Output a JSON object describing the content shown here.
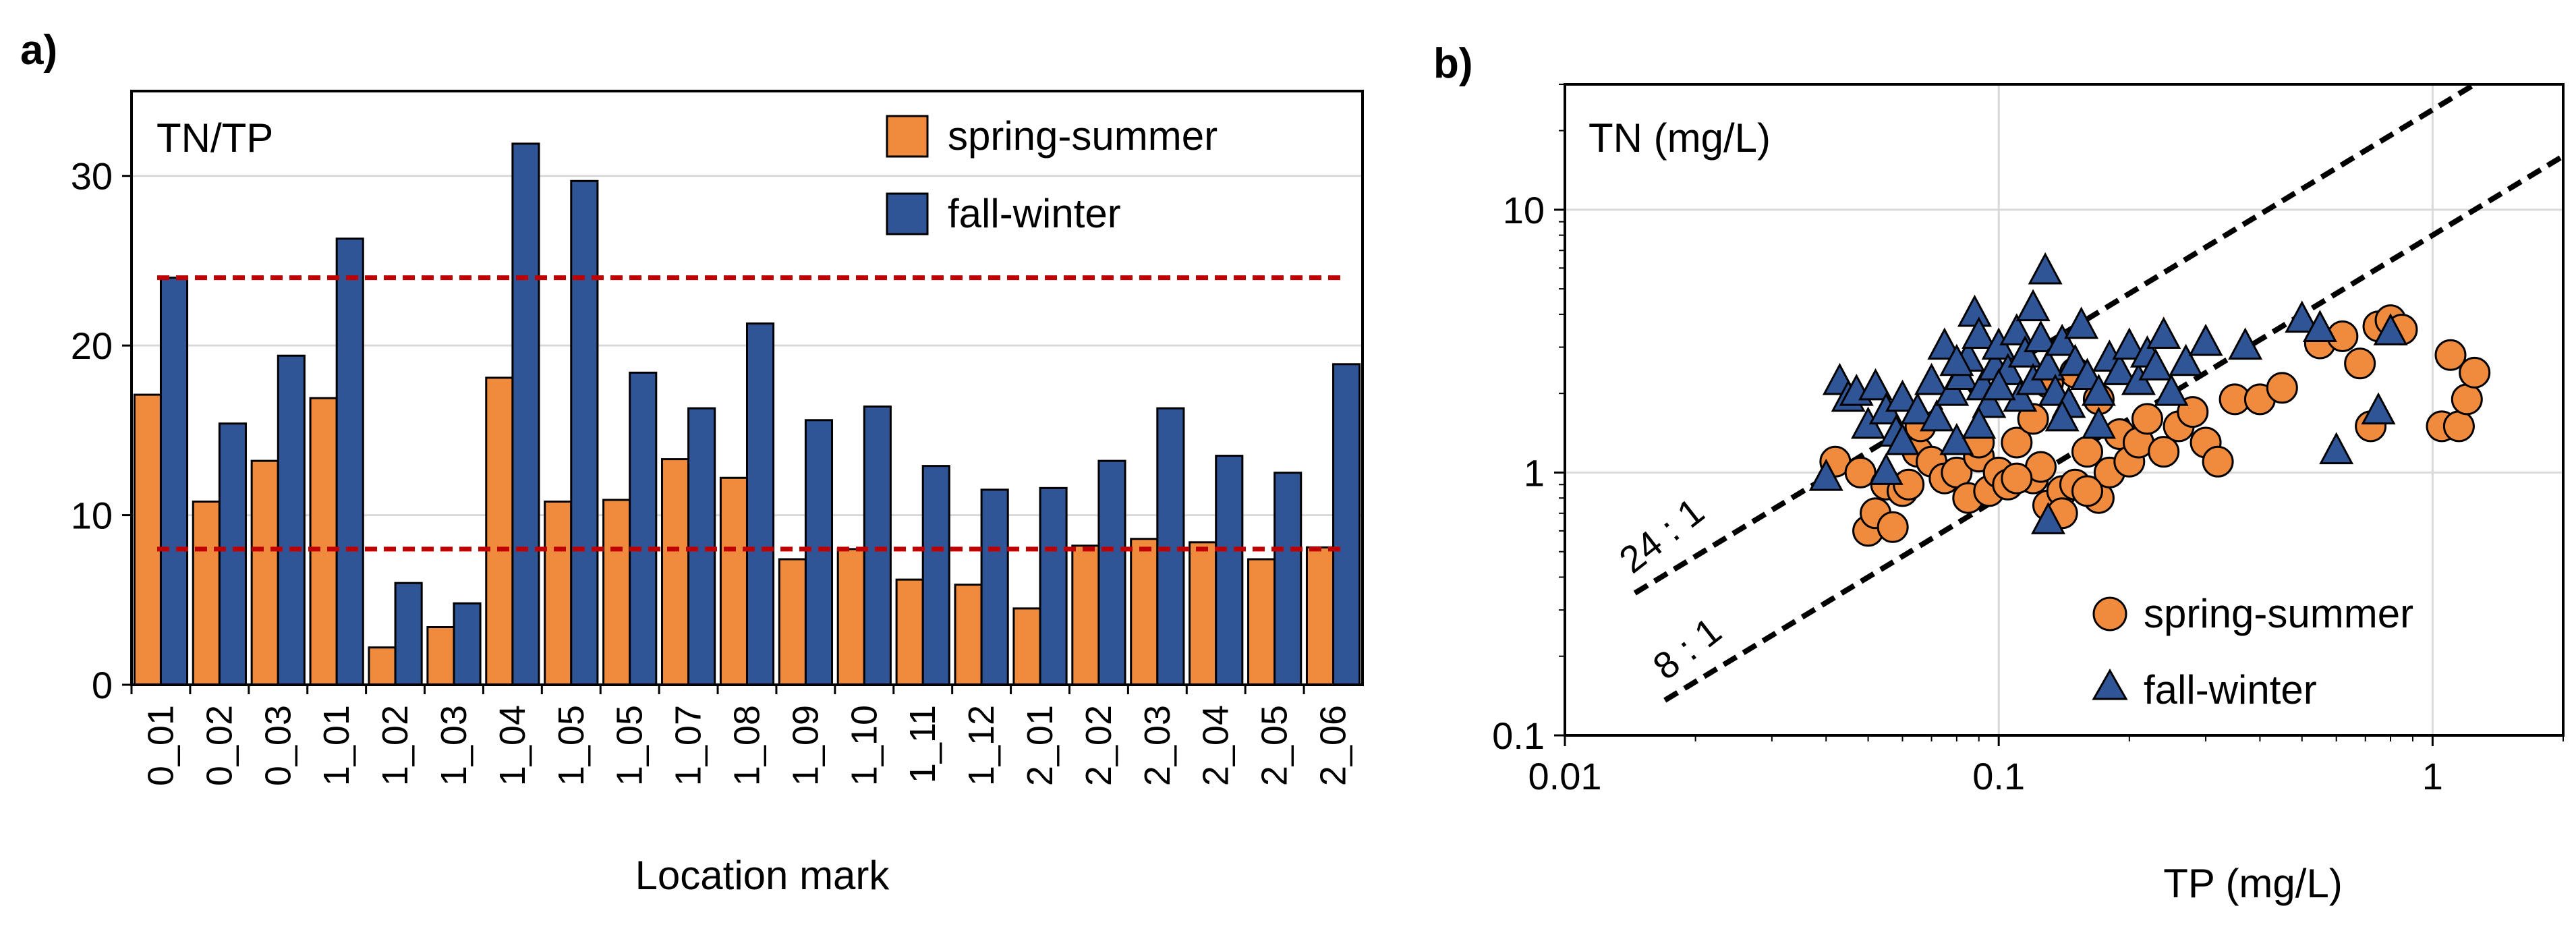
{
  "colors": {
    "spring": "#f08a3c",
    "fall": "#2f5597",
    "refline": "#c00000",
    "grid": "#d9d9d9",
    "stroke": "#000000"
  },
  "chart_data": [
    {
      "id": "a",
      "panel_label": "a)",
      "type": "bar",
      "inner_label": "TN/TP",
      "xlabel": "Location mark",
      "ylabel": "",
      "ylim": [
        0,
        35
      ],
      "yticks": [
        0,
        10,
        20,
        30
      ],
      "grid": true,
      "legend_position": "top-right",
      "categories": [
        "0_01",
        "0_02",
        "0_03",
        "1_01",
        "1_02",
        "1_03",
        "1_04",
        "1_05",
        "1_05",
        "1_07",
        "1_08",
        "1_09",
        "1_10",
        "1_11",
        "1_12",
        "2_01",
        "2_02",
        "2_03",
        "2_04",
        "2_05",
        "2_06"
      ],
      "series": [
        {
          "name": "spring-summer",
          "values": [
            17.1,
            10.8,
            13.2,
            16.9,
            2.2,
            3.4,
            18.1,
            10.8,
            10.9,
            13.3,
            12.2,
            7.4,
            8.0,
            6.2,
            5.9,
            4.5,
            8.2,
            8.6,
            8.4,
            7.4,
            8.1
          ]
        },
        {
          "name": "fall-winter",
          "values": [
            24.0,
            15.4,
            19.4,
            26.3,
            6.0,
            4.8,
            31.9,
            29.7,
            18.4,
            16.3,
            21.3,
            15.6,
            16.4,
            12.9,
            11.5,
            11.6,
            13.2,
            16.3,
            13.5,
            12.5,
            18.9
          ]
        }
      ],
      "reference_lines": [
        24,
        8
      ]
    },
    {
      "id": "b",
      "panel_label": "b)",
      "type": "scatter",
      "inner_label": "TN (mg/L)",
      "xlabel": "TP (mg/L)",
      "ylabel": "",
      "x_scale": "log",
      "y_scale": "log",
      "xlim": [
        0.01,
        2
      ],
      "ylim": [
        0.1,
        30
      ],
      "xticks": [
        0.01,
        0.1,
        1
      ],
      "xtick_labels": [
        "0.01",
        "0.1",
        "1"
      ],
      "yticks": [
        0.1,
        1,
        10
      ],
      "ytick_labels": [
        "0.1",
        "1",
        "10"
      ],
      "grid": true,
      "legend_position": "bottom-right",
      "ratio_lines": [
        {
          "label": "24 : 1",
          "ratio": 24
        },
        {
          "label": "8 : 1",
          "ratio": 8
        }
      ],
      "series": [
        {
          "name": "spring-summer",
          "marker": "circle",
          "points": [
            [
              0.042,
              1.1
            ],
            [
              0.048,
              1.0
            ],
            [
              0.05,
              0.6
            ],
            [
              0.052,
              0.7
            ],
            [
              0.055,
              0.9
            ],
            [
              0.057,
              0.62
            ],
            [
              0.06,
              0.85
            ],
            [
              0.062,
              0.9
            ],
            [
              0.065,
              1.2
            ],
            [
              0.07,
              1.1
            ],
            [
              0.075,
              0.95
            ],
            [
              0.08,
              1.0
            ],
            [
              0.085,
              0.8
            ],
            [
              0.09,
              1.15
            ],
            [
              0.095,
              0.85
            ],
            [
              0.1,
              1.0
            ],
            [
              0.105,
              0.9
            ],
            [
              0.11,
              1.3
            ],
            [
              0.12,
              0.95
            ],
            [
              0.125,
              1.05
            ],
            [
              0.13,
              0.75
            ],
            [
              0.14,
              0.85
            ],
            [
              0.15,
              0.9
            ],
            [
              0.16,
              1.2
            ],
            [
              0.17,
              0.8
            ],
            [
              0.18,
              1.0
            ],
            [
              0.19,
              1.4
            ],
            [
              0.2,
              1.1
            ],
            [
              0.21,
              1.3
            ],
            [
              0.22,
              1.6
            ],
            [
              0.24,
              1.2
            ],
            [
              0.26,
              1.5
            ],
            [
              0.28,
              1.7
            ],
            [
              0.3,
              1.3
            ],
            [
              0.32,
              1.1
            ],
            [
              0.35,
              1.9
            ],
            [
              0.4,
              1.9
            ],
            [
              0.45,
              2.1
            ],
            [
              0.55,
              3.1
            ],
            [
              0.62,
              3.3
            ],
            [
              0.68,
              2.6
            ],
            [
              0.72,
              1.5
            ],
            [
              0.75,
              3.6
            ],
            [
              0.8,
              3.8
            ],
            [
              0.85,
              3.5
            ],
            [
              1.05,
              1.5
            ],
            [
              1.1,
              2.8
            ],
            [
              1.15,
              1.5
            ],
            [
              1.2,
              1.9
            ],
            [
              1.25,
              2.4
            ],
            [
              0.13,
              2.2
            ],
            [
              0.15,
              2.4
            ],
            [
              0.17,
              1.9
            ],
            [
              0.12,
              1.6
            ],
            [
              0.09,
              1.3
            ],
            [
              0.066,
              1.5
            ],
            [
              0.14,
              0.7
            ],
            [
              0.11,
              0.95
            ],
            [
              0.16,
              0.85
            ]
          ]
        },
        {
          "name": "fall-winter",
          "marker": "triangle",
          "points": [
            [
              0.04,
              0.95
            ],
            [
              0.043,
              2.2
            ],
            [
              0.045,
              1.9
            ],
            [
              0.047,
              2.0
            ],
            [
              0.05,
              1.5
            ],
            [
              0.052,
              2.1
            ],
            [
              0.055,
              1.7
            ],
            [
              0.058,
              1.4
            ],
            [
              0.06,
              1.9
            ],
            [
              0.065,
              1.7
            ],
            [
              0.07,
              2.2
            ],
            [
              0.072,
              1.6
            ],
            [
              0.075,
              3.0
            ],
            [
              0.078,
              2.0
            ],
            [
              0.08,
              1.3
            ],
            [
              0.082,
              2.3
            ],
            [
              0.085,
              2.7
            ],
            [
              0.088,
              4.0
            ],
            [
              0.09,
              3.3
            ],
            [
              0.092,
              2.1
            ],
            [
              0.095,
              1.8
            ],
            [
              0.098,
              2.5
            ],
            [
              0.1,
              3.0
            ],
            [
              0.105,
              2.4
            ],
            [
              0.11,
              3.4
            ],
            [
              0.112,
              1.9
            ],
            [
              0.115,
              2.8
            ],
            [
              0.12,
              2.2
            ],
            [
              0.125,
              3.2
            ],
            [
              0.128,
              5.8
            ],
            [
              0.13,
              2.5
            ],
            [
              0.135,
              2.0
            ],
            [
              0.14,
              3.1
            ],
            [
              0.145,
              1.8
            ],
            [
              0.15,
              2.6
            ],
            [
              0.155,
              3.6
            ],
            [
              0.16,
              2.3
            ],
            [
              0.17,
              2.0
            ],
            [
              0.18,
              2.7
            ],
            [
              0.19,
              2.4
            ],
            [
              0.2,
              3.0
            ],
            [
              0.21,
              2.2
            ],
            [
              0.22,
              2.8
            ],
            [
              0.23,
              2.5
            ],
            [
              0.24,
              3.3
            ],
            [
              0.25,
              2.0
            ],
            [
              0.27,
              2.6
            ],
            [
              0.3,
              3.1
            ],
            [
              0.37,
              3.0
            ],
            [
              0.5,
              3.8
            ],
            [
              0.55,
              3.5
            ],
            [
              0.6,
              1.2
            ],
            [
              0.75,
              1.7
            ],
            [
              0.8,
              3.4
            ],
            [
              0.13,
              0.65
            ],
            [
              0.09,
              1.5
            ],
            [
              0.06,
              1.3
            ],
            [
              0.055,
              1.0
            ],
            [
              0.12,
              4.2
            ],
            [
              0.1,
              2.1
            ],
            [
              0.08,
              2.6
            ],
            [
              0.14,
              1.6
            ],
            [
              0.17,
              1.5
            ]
          ]
        }
      ]
    }
  ]
}
